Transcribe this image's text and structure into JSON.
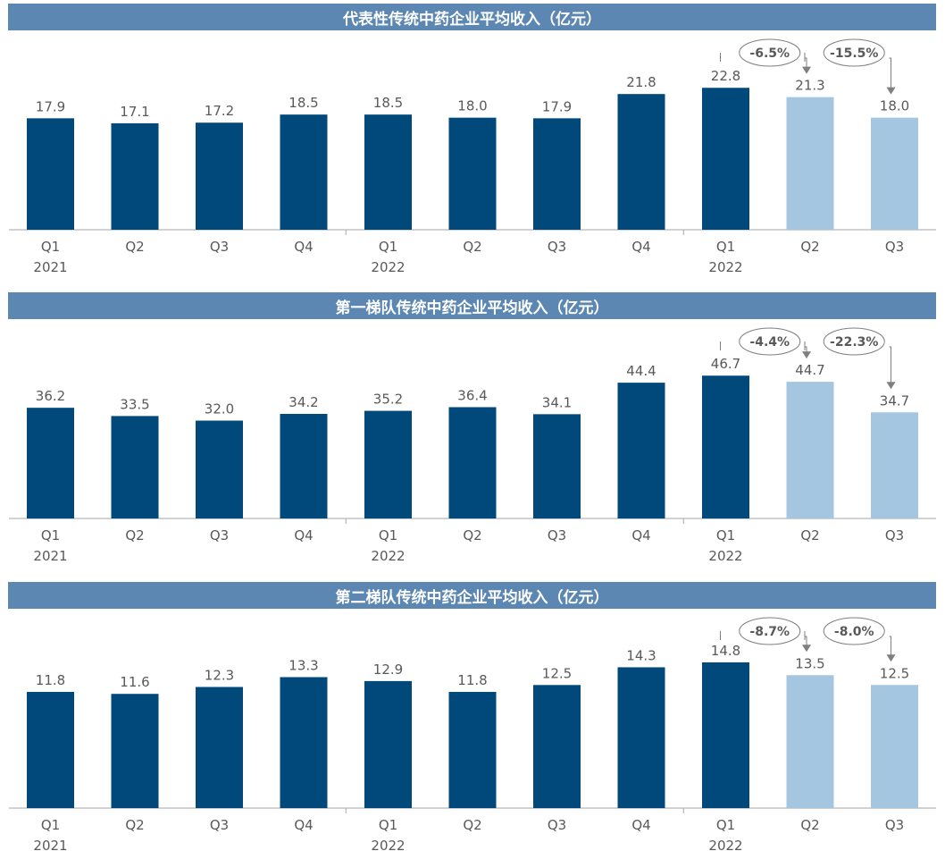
{
  "chart_data": [
    {
      "type": "bar",
      "title": "代表性传统中药企业平均收入（亿元）",
      "categories": [
        "Q1",
        "Q2",
        "Q3",
        "Q4",
        "Q1",
        "Q2",
        "Q3",
        "Q4",
        "Q1",
        "Q2",
        "Q3"
      ],
      "years": [
        "2021",
        "",
        "",
        "",
        "2022",
        "",
        "",
        "",
        "2022",
        "",
        ""
      ],
      "values": [
        17.9,
        17.1,
        17.2,
        18.5,
        18.5,
        18.0,
        17.9,
        21.8,
        22.8,
        21.3,
        18.0
      ],
      "value_labels": [
        "17.9",
        "17.1",
        "17.2",
        "18.5",
        "18.5",
        "18.0",
        "17.9",
        "21.8",
        "22.8",
        "21.3",
        "18.0"
      ],
      "ylim": [
        0,
        28
      ],
      "highlight_indices": [
        9,
        10
      ],
      "colors": {
        "default": "#00497a",
        "highlight": "#a5c6e1"
      },
      "annotations": [
        {
          "label": "-6.5%",
          "from": 8,
          "to": 9
        },
        {
          "label": "-15.5%",
          "from": 9,
          "to": 10
        }
      ],
      "grid": false,
      "legend": "none"
    },
    {
      "type": "bar",
      "title": "第一梯队传统中药企业平均收入（亿元）",
      "categories": [
        "Q1",
        "Q2",
        "Q3",
        "Q4",
        "Q1",
        "Q2",
        "Q3",
        "Q4",
        "Q1",
        "Q2",
        "Q3"
      ],
      "years": [
        "2021",
        "",
        "",
        "",
        "2022",
        "",
        "",
        "",
        "2022",
        "",
        ""
      ],
      "values": [
        36.2,
        33.5,
        32.0,
        34.2,
        35.2,
        36.4,
        34.1,
        44.4,
        46.7,
        44.7,
        34.7
      ],
      "value_labels": [
        "36.2",
        "33.5",
        "32.0",
        "34.2",
        "35.2",
        "36.4",
        "34.1",
        "44.4",
        "46.7",
        "44.7",
        "34.7"
      ],
      "ylim": [
        0,
        57
      ],
      "highlight_indices": [
        9,
        10
      ],
      "colors": {
        "default": "#00497a",
        "highlight": "#a5c6e1"
      },
      "annotations": [
        {
          "label": "-4.4%",
          "from": 8,
          "to": 9
        },
        {
          "label": "-22.3%",
          "from": 9,
          "to": 10
        }
      ],
      "grid": false,
      "legend": "none"
    },
    {
      "type": "bar",
      "title": "第二梯队传统中药企业平均收入（亿元）",
      "categories": [
        "Q1",
        "Q2",
        "Q3",
        "Q4",
        "Q1",
        "Q2",
        "Q3",
        "Q4",
        "Q1",
        "Q2",
        "Q3"
      ],
      "years": [
        "2021",
        "",
        "",
        "",
        "2022",
        "",
        "",
        "",
        "2022",
        "",
        ""
      ],
      "values": [
        11.8,
        11.6,
        12.3,
        13.3,
        12.9,
        11.8,
        12.5,
        14.3,
        14.8,
        13.5,
        12.5
      ],
      "value_labels": [
        "11.8",
        "11.6",
        "12.3",
        "13.3",
        "12.9",
        "11.8",
        "12.5",
        "14.3",
        "14.8",
        "13.5",
        "12.5"
      ],
      "ylim": [
        0,
        17.7
      ],
      "highlight_indices": [
        9,
        10
      ],
      "colors": {
        "default": "#00497a",
        "highlight": "#a5c6e1"
      },
      "annotations": [
        {
          "label": "-8.7%",
          "from": 8,
          "to": 9
        },
        {
          "label": "-8.0%",
          "from": 9,
          "to": 10
        }
      ],
      "grid": false,
      "legend": "none"
    }
  ]
}
